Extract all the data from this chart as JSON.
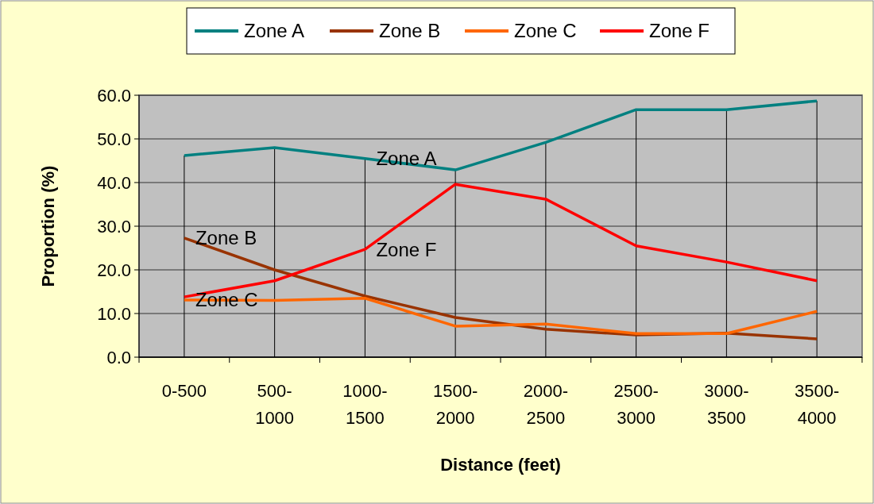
{
  "chart_data": {
    "type": "line",
    "xlabel": "Distance (feet)",
    "ylabel": "Proportion (%)",
    "categories": [
      "0-500",
      "500-1000",
      "1000-1500",
      "1500-2000",
      "2000-2500",
      "2500-3000",
      "3000-3500",
      "3500-4000"
    ],
    "series": [
      {
        "name": "Zone A",
        "color": "#008080",
        "values": [
          46.2,
          48.0,
          45.5,
          42.9,
          49.2,
          56.7,
          56.7,
          58.7
        ]
      },
      {
        "name": "Zone B",
        "color": "#993300",
        "values": [
          27.3,
          20.0,
          14.0,
          9.1,
          6.4,
          5.1,
          5.5,
          4.2
        ]
      },
      {
        "name": "Zone C",
        "color": "#ff6600",
        "values": [
          13.1,
          13.0,
          13.5,
          7.1,
          7.6,
          5.4,
          5.4,
          10.5
        ]
      },
      {
        "name": "Zone F",
        "color": "#ff0000",
        "values": [
          13.8,
          17.5,
          24.7,
          39.6,
          36.2,
          25.5,
          21.8,
          17.5
        ]
      }
    ],
    "ylim": [
      0,
      60
    ],
    "yticks": [
      {
        "value": 0,
        "label": "0.0"
      },
      {
        "value": 10,
        "label": "10.0"
      },
      {
        "value": 20,
        "label": "20.0"
      },
      {
        "value": 30,
        "label": "30.0"
      },
      {
        "value": 40,
        "label": "40.0"
      },
      {
        "value": 50,
        "label": "50.0"
      },
      {
        "value": 60,
        "label": "60.0"
      }
    ],
    "annotations": [
      {
        "text": "Zone A",
        "x": "1000-1500",
        "y": 45.5
      },
      {
        "text": "Zone F",
        "x": "1000-1500",
        "y": 24.7
      },
      {
        "text": "Zone B",
        "x": "0-500",
        "y": 27.3
      },
      {
        "text": "Zone C",
        "x": "0-500",
        "y": 13.1
      }
    ],
    "grid": true,
    "legend": "top",
    "marker": "none",
    "line_style": "solid"
  }
}
